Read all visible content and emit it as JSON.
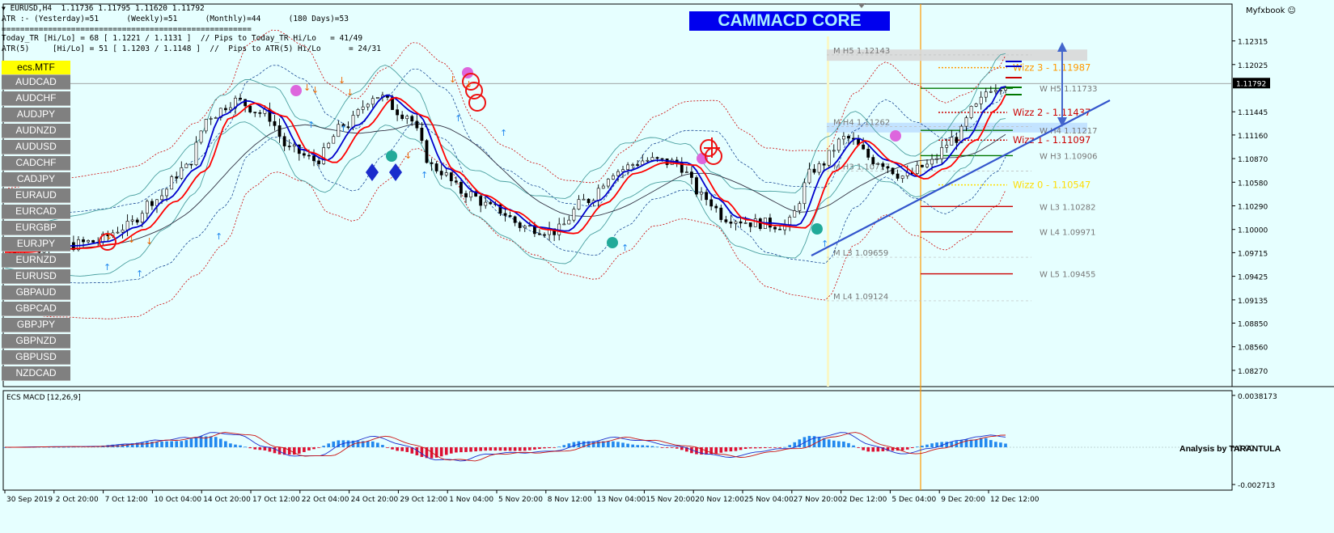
{
  "header": {
    "line1": "EURUSD,H4  1.11736 1.11795 1.11620 1.11792",
    "line2": "ATR :- (Yesterday)=51      (Weekly)=51      (Monthly)=44      (180 Days)=53",
    "line3": "======================================================",
    "line4": "Today_TR [Hi/Lo] = 68 [ 1.1221 / 1.1131 ]  // Pips to Today_TR Hi/Lo   = 41/49",
    "line5": "ATR(5)     [Hi/Lo] = 51 [ 1.1203 / 1.1148 ]  //  Pips to ATR(5) Hi/Lo      = 24/31"
  },
  "banner": "CAMMACD CORE",
  "corner_label": "Myfxbook",
  "symbols": {
    "active": "ecs.MTF",
    "list": [
      "AUDCAD",
      "AUDCHF",
      "AUDJPY",
      "AUDNZD",
      "AUDUSD",
      "CADCHF",
      "CADJPY",
      "EURAUD",
      "EURCAD",
      "EURGBP",
      "EURJPY",
      "EURNZD",
      "EURUSD",
      "GBPAUD",
      "GBPCAD",
      "GBPJPY",
      "GBPNZD",
      "GBPUSD",
      "NZDCAD"
    ]
  },
  "analysis_label": "Analysis by TARANTULA",
  "colors": {
    "background": "#e6ffff",
    "ema_fast": "#ff0000",
    "ema_slow": "#0000cc",
    "bands": "#4aa0a0",
    "envelope": "#cc0000",
    "trendline": "#3355cc",
    "macd_up": "#2288ee",
    "macd_down": "#dd1133",
    "vline": "#ff9900"
  },
  "chart_data": [
    {
      "type": "candlestick",
      "title": "EURUSD,H4",
      "ylim": [
        1.0815,
        1.1245
      ],
      "yticks": [
        "1.12315",
        "1.12025",
        "1.11445",
        "1.11160",
        "1.10870",
        "1.10580",
        "1.10290",
        "1.10000",
        "1.09715",
        "1.09425",
        "1.09135",
        "1.08850",
        "1.08560",
        "1.08270"
      ],
      "ytick_values": [
        1.12315,
        1.12025,
        1.11445,
        1.1116,
        1.1087,
        1.1058,
        1.1029,
        1.1,
        1.09715,
        1.09425,
        1.09135,
        1.0885,
        1.0856,
        1.0827
      ],
      "current_price": "1.11792",
      "current_price_value": 1.11792,
      "xticks": [
        "30 Sep 2019",
        "2 Oct 20:00",
        "7 Oct 12:00",
        "10 Oct 04:00",
        "14 Oct 20:00",
        "17 Oct 12:00",
        "22 Oct 04:00",
        "24 Oct 20:00",
        "29 Oct 12:00",
        "1 Nov 04:00",
        "5 Nov 20:00",
        "8 Nov 12:00",
        "13 Nov 04:00",
        "15 Nov 20:00",
        "20 Nov 12:00",
        "25 Nov 04:00",
        "27 Nov 20:00",
        "2 Dec 12:00",
        "5 Dec 04:00",
        "9 Dec 20:00",
        "12 Dec 12:00"
      ],
      "close_path_t": [
        0,
        0.03,
        0.06,
        0.09,
        0.12,
        0.15,
        0.18,
        0.205,
        0.23,
        0.26,
        0.285,
        0.31,
        0.34,
        0.37,
        0.4,
        0.43,
        0.46,
        0.49,
        0.52,
        0.55,
        0.58,
        0.61,
        0.64,
        0.67,
        0.7,
        0.72,
        0.75,
        0.78,
        0.81,
        0.84,
        0.87,
        0.9,
        0.92,
        0.95,
        0.97,
        0.985,
        1.0
      ],
      "close_path_price": [
        1.0975,
        1.0978,
        1.098,
        1.0985,
        1.1003,
        1.1037,
        1.1075,
        1.114,
        1.1158,
        1.1142,
        1.1098,
        1.1085,
        1.1128,
        1.1165,
        1.1142,
        1.1075,
        1.1045,
        1.1025,
        1.1003,
        1.0998,
        1.1035,
        1.1072,
        1.1085,
        1.1082,
        1.1038,
        1.1015,
        1.1008,
        1.1005,
        1.1075,
        1.1112,
        1.1085,
        1.1065,
        1.1078,
        1.1112,
        1.115,
        1.1175,
        1.1179
      ],
      "levels": [
        {
          "label": "M  H5 1.12143",
          "value": 1.12143
        },
        {
          "label": "W  H5 1.11733",
          "value": 1.11733
        },
        {
          "label": "M  H4 1.11262",
          "value": 1.11262
        },
        {
          "label": "W  H4 1.11217",
          "value": 1.11217
        },
        {
          "label": "W  H3 1.10906",
          "value": 1.10906
        },
        {
          "label": "M  H3 1.10717",
          "value": 1.10717
        },
        {
          "label": "W  L3 1.10282",
          "value": 1.10282
        },
        {
          "label": "W  L4 1.09971",
          "value": 1.09971
        },
        {
          "label": "M  L3 1.09659",
          "value": 1.09659
        },
        {
          "label": "W  L5 1.09455",
          "value": 1.09455
        },
        {
          "label": "M  L4 1.09124",
          "value": 1.09124
        }
      ],
      "wizz": [
        {
          "label": "Wizz 3 - 1.11987",
          "value": 1.11987,
          "color": "#ff9900"
        },
        {
          "label": "Wizz 2 - 1.11437",
          "value": 1.11437,
          "color": "#cc0000"
        },
        {
          "label": "Wizz 1 - 1.11097",
          "value": 1.11097,
          "color": "#cc0000"
        },
        {
          "label": "Wizz 0 - 1.10547",
          "value": 1.10547,
          "color": "#ffdd00"
        }
      ]
    },
    {
      "type": "bar",
      "title": "ECS MACD [12,26,9]",
      "ylim": [
        -0.00271,
        0.00381
      ],
      "yticks": [
        "0.0038173",
        "0.00",
        "-0.002713"
      ],
      "ytick_values": [
        0.0038173,
        0.0,
        -0.002713
      ]
    }
  ]
}
